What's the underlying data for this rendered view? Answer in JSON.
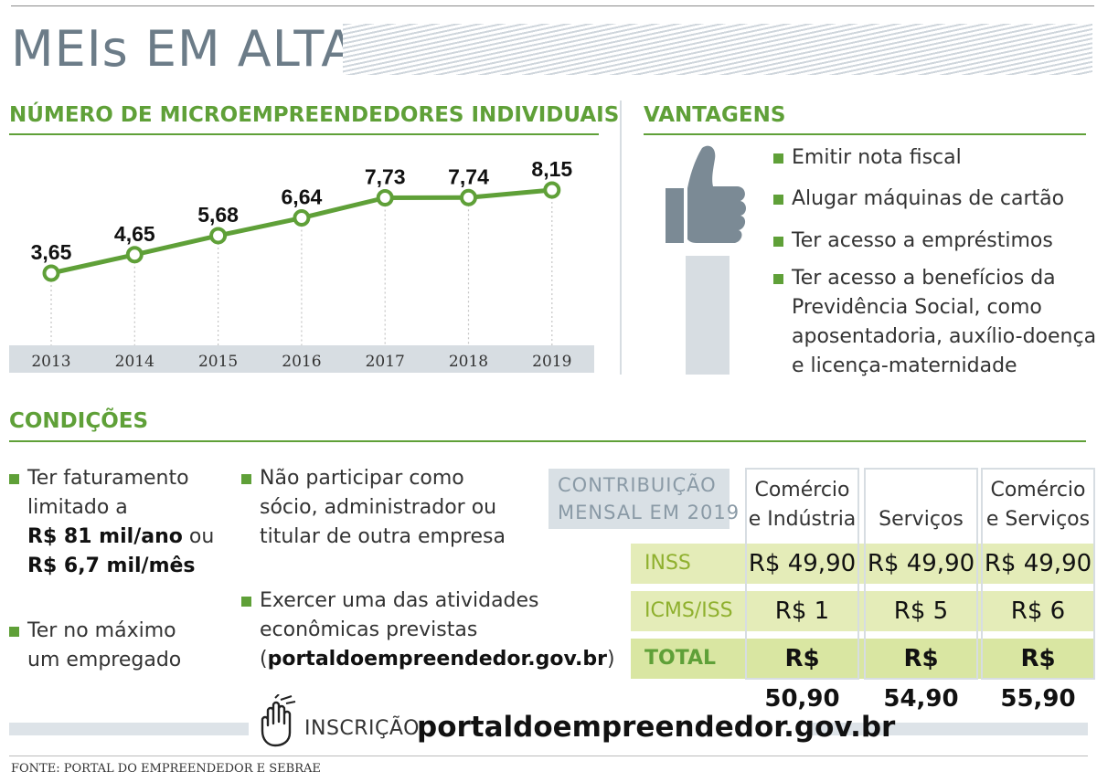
{
  "title": "MEIs EM ALTA",
  "chart_data": {
    "type": "line",
    "title": "NÚMERO DE MICROEMPREENDEDORES INDIVIDUAIS",
    "categories": [
      "2013",
      "2014",
      "2015",
      "2016",
      "2017",
      "2018",
      "2019"
    ],
    "values": [
      3.65,
      4.65,
      5.68,
      6.64,
      7.73,
      7.74,
      8.15
    ],
    "value_labels": [
      "3,65",
      "4,65",
      "5,68",
      "6,64",
      "7,73",
      "7,74",
      "8,15"
    ],
    "ylim": [
      0,
      9
    ],
    "grid": "vertical dotted lines at each year",
    "series_color": "#5fa038"
  },
  "vantagens": {
    "heading": "VANTAGENS",
    "items": [
      "Emitir nota fiscal",
      "Alugar máquinas de cartão",
      "Ter acesso a empréstimos",
      "Ter acesso a benefícios da",
      "Previdência Social, como",
      "aposentadoria, auxílio-doença",
      "e licença-maternidade"
    ]
  },
  "condicoes": {
    "heading": "CONDIÇÕES",
    "c1": {
      "l1": "Ter faturamento",
      "l2": "limitado a",
      "l3a": "R$ 81 mil/ano",
      "l3b": " ou",
      "l4": "R$ 6,7 mil/mês"
    },
    "c2": {
      "l1": "Ter no máximo",
      "l2": "um empregado"
    },
    "c3": {
      "l1": "Não participar como",
      "l2": "sócio, administrador ou",
      "l3": "titular de outra empresa"
    },
    "c4": {
      "l1": "Exercer uma das atividades",
      "l2": "econômicas previstas",
      "l3a": "(",
      "l3b": "portaldoempreendedor.gov.br",
      "l3c": ")"
    }
  },
  "contribuicao": {
    "label_l1": "CONTRIBUIÇÃO",
    "label_l2": "MENSAL EM 2019",
    "columns": [
      {
        "l1": "Comércio",
        "l2": "e Indústria"
      },
      {
        "l1": "",
        "l2": "Serviços"
      },
      {
        "l1": "Comércio",
        "l2": "e Serviços"
      }
    ],
    "rows": [
      {
        "label": "INSS",
        "values": [
          "R$ 49,90",
          "R$ 49,90",
          "R$ 49,90"
        ]
      },
      {
        "label": "ICMS/ISS",
        "values": [
          "R$ 1",
          "R$ 5",
          "R$ 6"
        ]
      },
      {
        "label": "TOTAL",
        "values": [
          "R$ 50,90",
          "R$ 54,90",
          "R$ 55,90"
        ]
      }
    ]
  },
  "inscricao": {
    "label": "INSCRIÇÃO:",
    "url": "portaldoempreendedor.gov.br"
  },
  "fonte": "FONTE: PORTAL DO EMPREENDEDOR E SEBRAE",
  "colors": {
    "accent": "#5fa038",
    "title_gray": "#6c7c88",
    "band": "#e4ecb8"
  },
  "icons": [
    "thumbs-up-icon",
    "pointing-hand-icon"
  ]
}
